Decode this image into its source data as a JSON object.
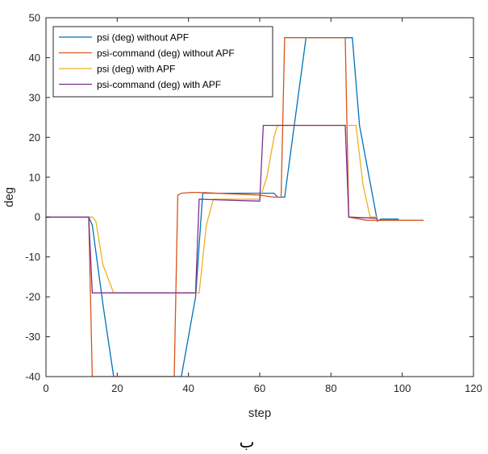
{
  "chart_data": {
    "type": "line",
    "title": "",
    "xlabel": "step",
    "ylabel": "deg",
    "xlim": [
      0,
      120
    ],
    "ylim": [
      -40,
      50
    ],
    "xticks": [
      0,
      20,
      40,
      60,
      80,
      100,
      120
    ],
    "yticks": [
      -40,
      -30,
      -20,
      -10,
      0,
      10,
      20,
      30,
      40,
      50
    ],
    "grid": false,
    "legend_position": "top-left",
    "caption": "ب",
    "series": [
      {
        "name": "psi (deg) without APF",
        "color": "#0072BD",
        "x": [
          0,
          12,
          13,
          16,
          19,
          37,
          38,
          42,
          44,
          64,
          65,
          67,
          73,
          74,
          86,
          88,
          93,
          94,
          99
        ],
        "y": [
          0,
          0,
          -2,
          -22,
          -40,
          -40,
          -40,
          -20,
          6,
          6,
          5,
          5,
          45,
          45,
          45,
          23,
          -1,
          -0.5,
          -0.5
        ]
      },
      {
        "name": "psi-command (deg) without APF",
        "color": "#D95319",
        "x": [
          0,
          12,
          13,
          36,
          37,
          38,
          41,
          43,
          60,
          64,
          66,
          67,
          84,
          85,
          90,
          106
        ],
        "y": [
          0,
          0,
          -40,
          -40,
          5.5,
          6,
          6.2,
          6.2,
          5.5,
          5,
          5,
          45,
          45,
          0,
          -0.8,
          -0.8
        ]
      },
      {
        "name": "psi (deg) with APF",
        "color": "#EDB120",
        "x": [
          0,
          13,
          14,
          16,
          19,
          43,
          45,
          47,
          60,
          62,
          64,
          65,
          85,
          87,
          89,
          91,
          93
        ],
        "y": [
          0,
          0,
          -1,
          -12,
          -19,
          -19,
          -2,
          4.5,
          4.5,
          10,
          20,
          23,
          23,
          23,
          8,
          0,
          0
        ]
      },
      {
        "name": "psi-command (deg) with APF",
        "color": "#7E2F8E",
        "x": [
          0,
          12,
          13,
          42,
          43,
          60,
          61,
          84,
          85,
          93
        ],
        "y": [
          0,
          0,
          -19,
          -19,
          4.5,
          4,
          23,
          23,
          0,
          -0.3
        ]
      }
    ]
  }
}
